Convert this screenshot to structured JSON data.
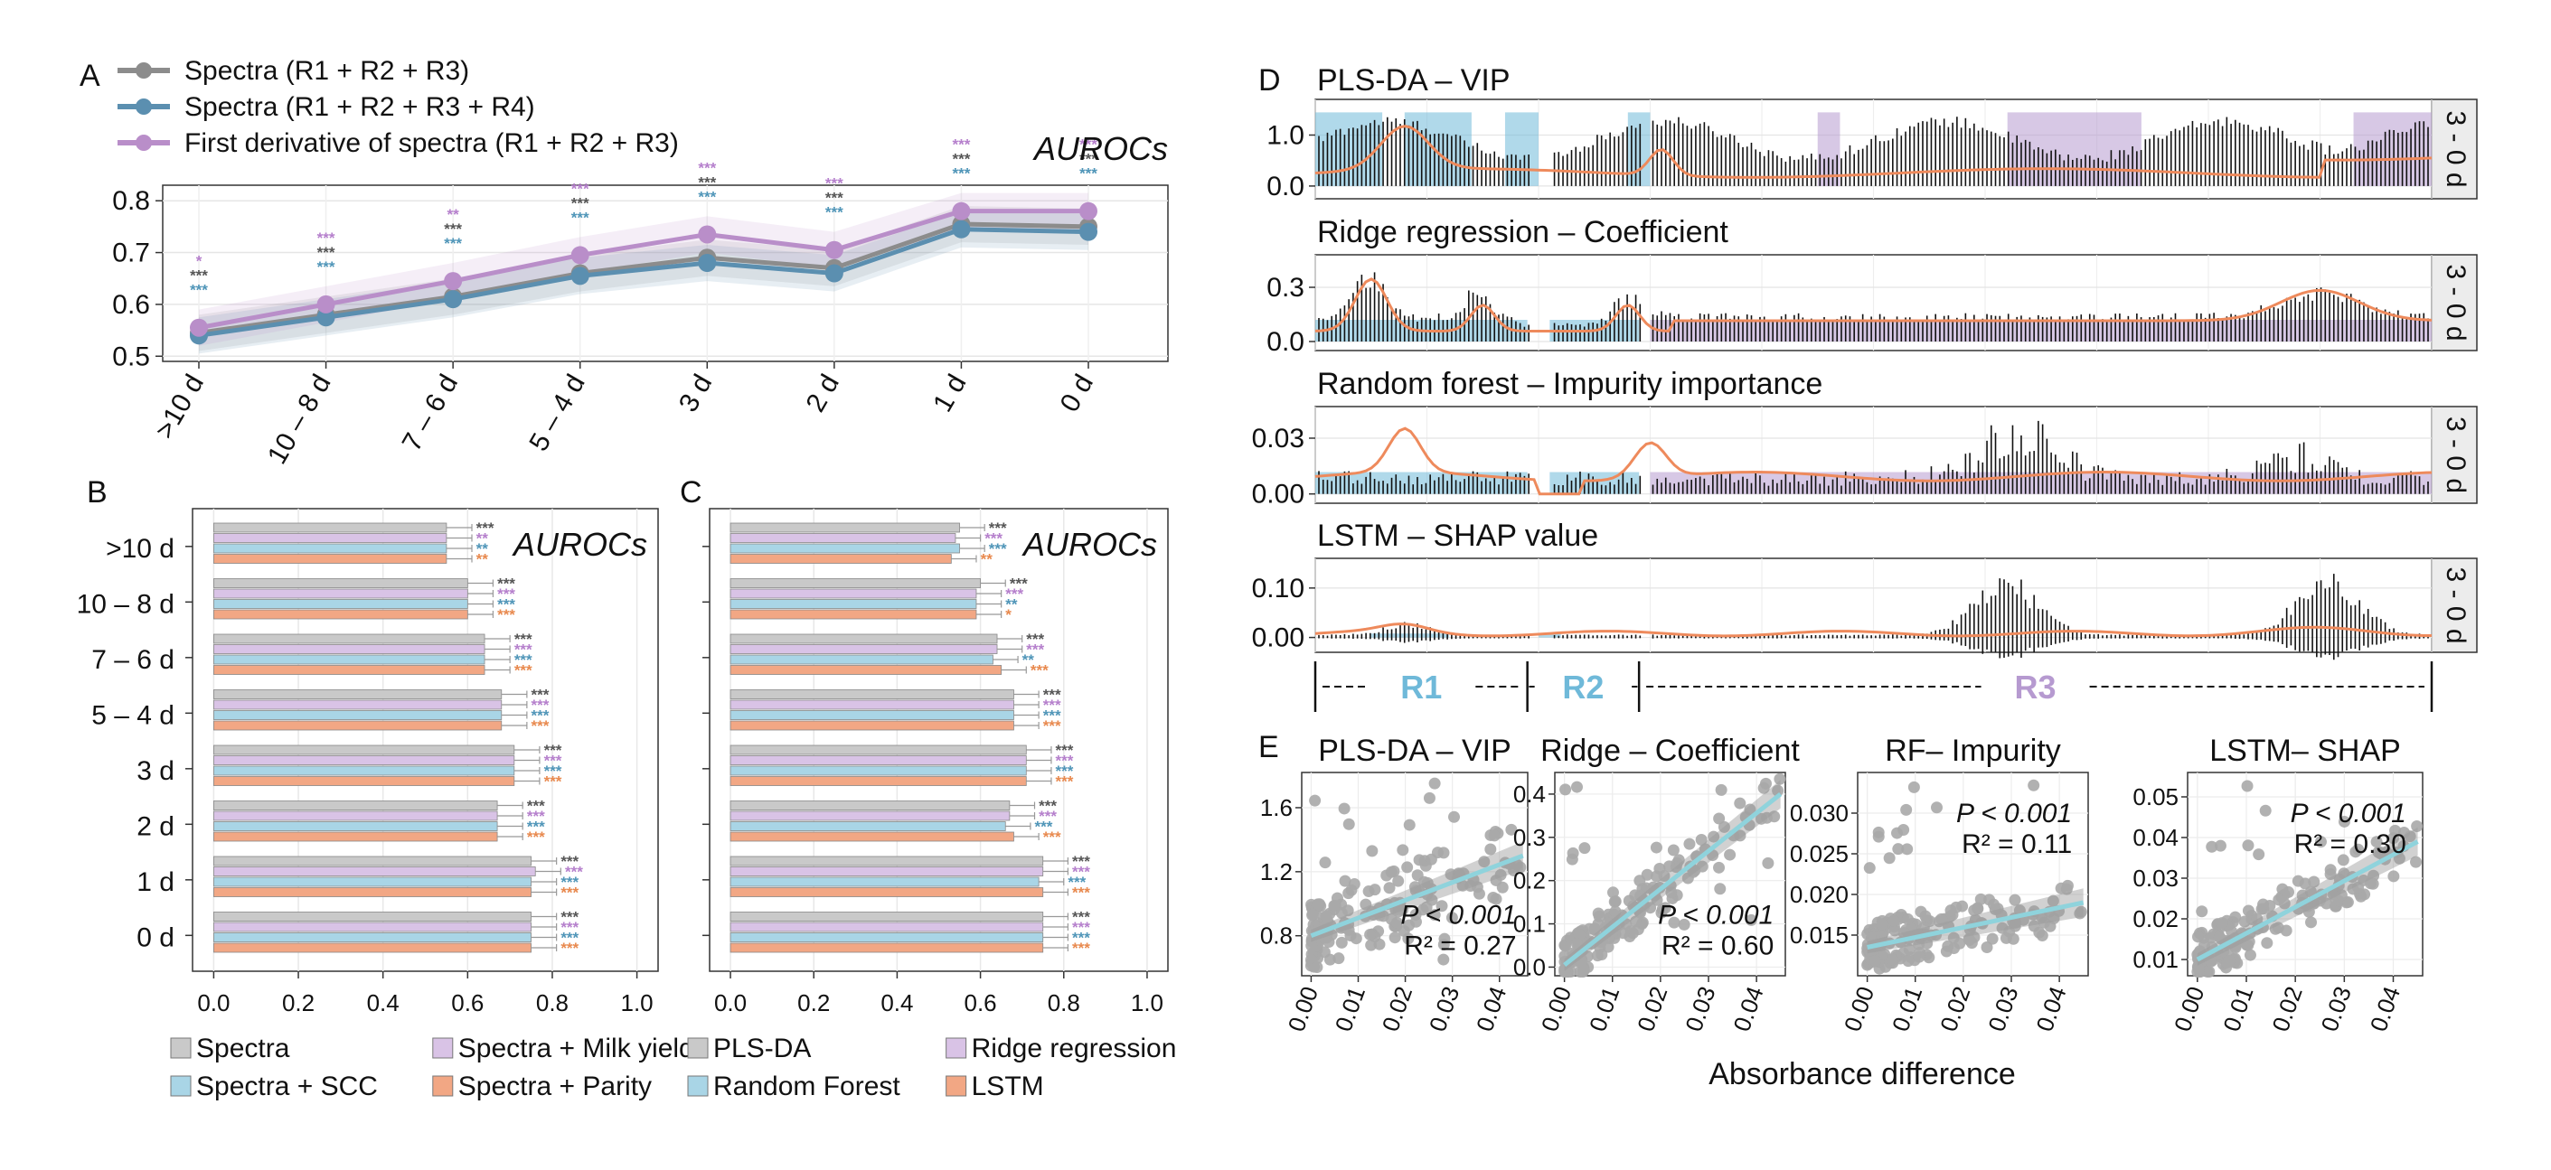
{
  "colors": {
    "spectra123": "#8c8c8c",
    "spectra1234": "#5b8fb0",
    "deriv123": "#b98ec9",
    "gray_bar": "#c9c9c9",
    "purple_bar": "#d9c3e6",
    "blue_bar": "#a9d5e6",
    "orange_bar": "#f2a784",
    "star_gray": "#555555",
    "star_purple": "#b57fcc",
    "star_blue": "#4f95b8",
    "star_orange": "#e8894e",
    "region_blue": "#6fb9d9",
    "region_purple": "#b69ad0",
    "orange_line": "#ee8a5c",
    "fit_line": "#8fd3dc",
    "scatter": "#a9a9a9"
  },
  "panel_letters": [
    "A",
    "B",
    "C",
    "D",
    "E"
  ],
  "panel_a": {
    "legend": [
      "Spectra (R1 + R2 + R3)",
      "Spectra (R1 + R2 + R3 + R4)",
      "First derivative of spectra (R1 + R2 + R3)"
    ],
    "label": "AUROCs"
  },
  "panel_b": {
    "label": "AUROCs",
    "legend": [
      "Spectra",
      "Spectra + Milk yield",
      "Spectra + SCC",
      "Spectra + Parity"
    ]
  },
  "panel_c": {
    "label": "AUROCs",
    "legend": [
      "PLS-DA",
      "Ridge regression",
      "Random Forest",
      "LSTM"
    ]
  },
  "panel_d": {
    "titles": [
      "PLS-DA – VIP",
      "Ridge regression – Coefficient",
      "Random forest – Impurity importance",
      "LSTM – SHAP value"
    ],
    "strip_label": "3 - 0 d",
    "regions": [
      "R1",
      "R2",
      "R3"
    ]
  },
  "panel_e": {
    "xlabel": "Absorbance difference",
    "panels": [
      {
        "title": "PLS-DA – VIP",
        "p": "P < 0.001",
        "r2": "R² = 0.27"
      },
      {
        "title": "Ridge – Coefficient",
        "p": "P < 0.001",
        "r2": "R² = 0.60"
      },
      {
        "title": "RF– Impurity",
        "p": "P < 0.001",
        "r2": "R² = 0.11"
      },
      {
        "title": "LSTM– SHAP",
        "p": "P < 0.001",
        "r2": "R² = 0.30"
      }
    ]
  },
  "chart_data": [
    {
      "type": "line",
      "panel": "A",
      "categories": [
        ">10 d",
        "10 – 8 d",
        "7 – 6 d",
        "5 – 4 d",
        "3 d",
        "2 d",
        "1 d",
        "0 d"
      ],
      "ylim": [
        0.49,
        0.83
      ],
      "yticks": [
        0.5,
        0.6,
        0.7,
        0.8
      ],
      "series": [
        {
          "name": "Spectra (R1 + R2 + R3)",
          "values": [
            0.545,
            0.58,
            0.615,
            0.66,
            0.69,
            0.67,
            0.755,
            0.75
          ],
          "stars": [
            "***",
            "***",
            "***",
            "***",
            "***",
            "***",
            "***",
            "***"
          ]
        },
        {
          "name": "Spectra (R1 + R2 + R3 + R4)",
          "values": [
            0.54,
            0.575,
            0.61,
            0.655,
            0.68,
            0.66,
            0.745,
            0.74
          ],
          "stars": [
            "***",
            "***",
            "***",
            "***",
            "***",
            "***",
            "***",
            "***"
          ]
        },
        {
          "name": "First derivative of spectra (R1 + R2 + R3)",
          "values": [
            0.555,
            0.6,
            0.645,
            0.695,
            0.735,
            0.705,
            0.78,
            0.78
          ],
          "stars": [
            "*",
            "***",
            "**",
            "***",
            "***",
            "***",
            "***",
            "***"
          ]
        }
      ]
    },
    {
      "type": "bar",
      "panel": "B",
      "categories": [
        ">10 d",
        "10 – 8 d",
        "7 – 6 d",
        "5 – 4 d",
        "3 d",
        "2 d",
        "1 d",
        "0 d"
      ],
      "xlim": [
        -0.05,
        1.05
      ],
      "xticks": [
        0.0,
        0.2,
        0.4,
        0.6,
        0.8,
        1.0
      ],
      "series": [
        {
          "name": "Spectra",
          "values": [
            0.55,
            0.6,
            0.64,
            0.68,
            0.71,
            0.67,
            0.75,
            0.75
          ],
          "stars": [
            "***",
            "***",
            "***",
            "***",
            "***",
            "***",
            "***",
            "***"
          ]
        },
        {
          "name": "Spectra + Milk yield",
          "values": [
            0.55,
            0.6,
            0.64,
            0.68,
            0.71,
            0.67,
            0.76,
            0.75
          ],
          "stars": [
            "**",
            "***",
            "***",
            "***",
            "***",
            "***",
            "***",
            "***"
          ]
        },
        {
          "name": "Spectra + SCC",
          "values": [
            0.55,
            0.6,
            0.64,
            0.68,
            0.71,
            0.67,
            0.75,
            0.75
          ],
          "stars": [
            "**",
            "***",
            "***",
            "***",
            "***",
            "***",
            "***",
            "***"
          ]
        },
        {
          "name": "Spectra + Parity",
          "values": [
            0.55,
            0.6,
            0.64,
            0.68,
            0.71,
            0.67,
            0.75,
            0.75
          ],
          "stars": [
            "**",
            "***",
            "***",
            "***",
            "***",
            "***",
            "***",
            "***"
          ]
        }
      ]
    },
    {
      "type": "bar",
      "panel": "C",
      "categories": [
        ">10 d",
        "10 – 8 d",
        "7 – 6 d",
        "5 – 4 d",
        "3 d",
        "2 d",
        "1 d",
        "0 d"
      ],
      "xlim": [
        -0.05,
        1.05
      ],
      "xticks": [
        0.0,
        0.2,
        0.4,
        0.6,
        0.8,
        1.0
      ],
      "series": [
        {
          "name": "PLS-DA",
          "values": [
            0.55,
            0.6,
            0.64,
            0.68,
            0.71,
            0.67,
            0.75,
            0.75
          ],
          "stars": [
            "***",
            "***",
            "***",
            "***",
            "***",
            "***",
            "***",
            "***"
          ]
        },
        {
          "name": "Ridge regression",
          "values": [
            0.54,
            0.59,
            0.64,
            0.68,
            0.71,
            0.67,
            0.75,
            0.75
          ],
          "stars": [
            "***",
            "***",
            "***",
            "***",
            "***",
            "***",
            "***",
            "***"
          ]
        },
        {
          "name": "Random Forest",
          "values": [
            0.55,
            0.59,
            0.63,
            0.68,
            0.71,
            0.66,
            0.74,
            0.75
          ],
          "stars": [
            "***",
            "**",
            "**",
            "***",
            "***",
            "***",
            "***",
            "***"
          ]
        },
        {
          "name": "LSTM",
          "values": [
            0.53,
            0.59,
            0.65,
            0.68,
            0.71,
            0.68,
            0.75,
            0.75
          ],
          "stars": [
            "**",
            "*",
            "***",
            "***",
            "***",
            "***",
            "***",
            "***"
          ]
        }
      ]
    },
    {
      "type": "bar",
      "panel": "D",
      "subplots": [
        {
          "ylim": [
            -0.25,
            1.7
          ],
          "yticks": [
            0.0,
            1.0
          ],
          "ytick_labels": [
            "0.0",
            "1.0"
          ]
        },
        {
          "ylim": [
            -0.05,
            0.48
          ],
          "yticks": [
            0.0,
            0.3
          ],
          "ytick_labels": [
            "0.0",
            "0.3"
          ]
        },
        {
          "ylim": [
            -0.005,
            0.047
          ],
          "yticks": [
            0.0,
            0.03
          ],
          "ytick_labels": [
            "0.00",
            "0.03"
          ]
        },
        {
          "ylim": [
            -0.03,
            0.16
          ],
          "yticks": [
            0.0,
            0.1
          ],
          "ytick_labels": [
            "0.00",
            "0.10"
          ]
        }
      ]
    },
    {
      "type": "scatter",
      "panel": "E",
      "x_ticks": [
        0.0,
        0.01,
        0.02,
        0.03,
        0.04
      ],
      "x_tick_labels": [
        "0.00",
        "0.01",
        "0.02",
        "0.03",
        "0.04"
      ],
      "xlim": [
        -0.002,
        0.046
      ],
      "subplots": [
        {
          "ylim": [
            0.55,
            1.82
          ],
          "yticks": [
            0.8,
            1.2,
            1.6
          ],
          "ytick_labels": [
            "0.8",
            "1.2",
            "1.6"
          ],
          "fit": [
            [
              0.0,
              0.8
            ],
            [
              0.045,
              1.3
            ]
          ]
        },
        {
          "ylim": [
            -0.02,
            0.45
          ],
          "yticks": [
            0.0,
            0.1,
            0.2,
            0.3,
            0.4
          ],
          "ytick_labels": [
            "0.0",
            "0.1",
            "0.2",
            "0.3",
            "0.4"
          ],
          "fit": [
            [
              0.0,
              0.005
            ],
            [
              0.045,
              0.4
            ]
          ]
        },
        {
          "ylim": [
            0.01,
            0.035
          ],
          "yticks": [
            0.015,
            0.02,
            0.025,
            0.03
          ],
          "ytick_labels": [
            "0.015",
            "0.020",
            "0.025",
            "0.030"
          ],
          "fit": [
            [
              0.0,
              0.0135
            ],
            [
              0.045,
              0.019
            ]
          ]
        },
        {
          "ylim": [
            0.006,
            0.056
          ],
          "yticks": [
            0.01,
            0.02,
            0.03,
            0.04,
            0.05
          ],
          "ytick_labels": [
            "0.01",
            "0.02",
            "0.03",
            "0.04",
            "0.05"
          ],
          "fit": [
            [
              0.0,
              0.01
            ],
            [
              0.045,
              0.039
            ]
          ]
        }
      ]
    }
  ]
}
